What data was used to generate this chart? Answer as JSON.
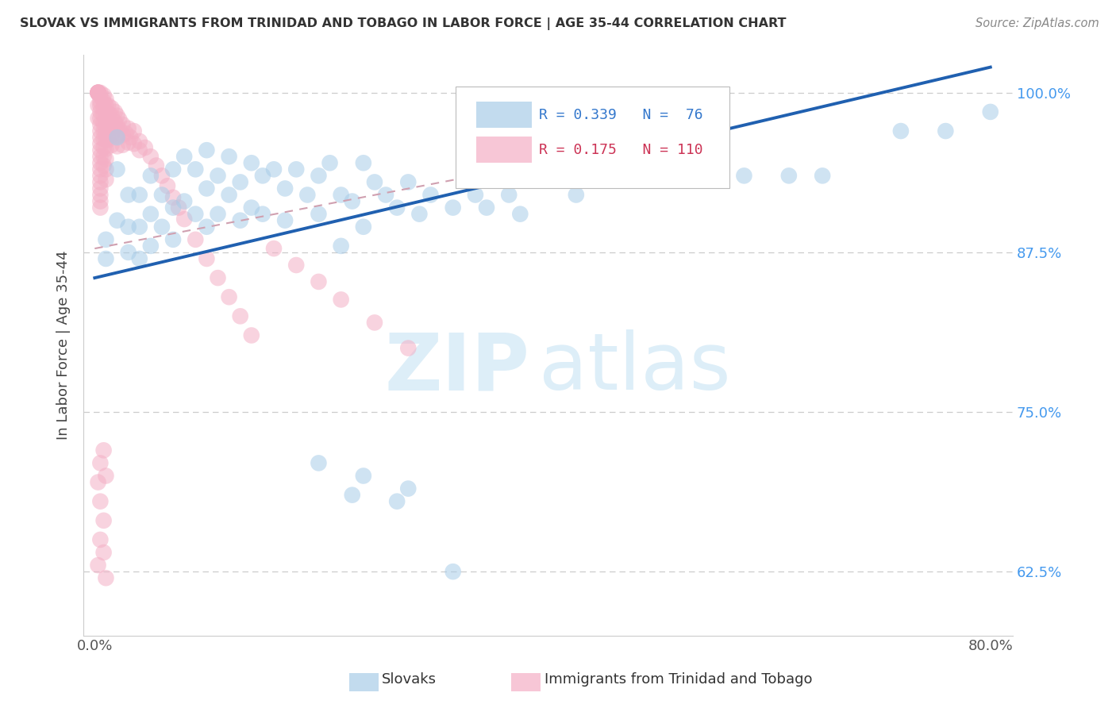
{
  "title": "SLOVAK VS IMMIGRANTS FROM TRINIDAD AND TOBAGO IN LABOR FORCE | AGE 35-44 CORRELATION CHART",
  "source": "Source: ZipAtlas.com",
  "ylabel": "In Labor Force | Age 35-44",
  "xlim": [
    -0.01,
    0.82
  ],
  "ylim": [
    0.575,
    1.03
  ],
  "yticks": [
    0.625,
    0.75,
    0.875,
    1.0
  ],
  "ytick_labels": [
    "62.5%",
    "75.0%",
    "87.5%",
    "100.0%"
  ],
  "xticks": [
    0.0,
    0.2,
    0.4,
    0.6,
    0.8
  ],
  "xtick_labels": [
    "0.0%",
    "",
    "",
    "",
    "80.0%"
  ],
  "blue_R": 0.339,
  "blue_N": 76,
  "pink_R": 0.175,
  "pink_N": 110,
  "blue_color": "#a8cce8",
  "pink_color": "#f4afc5",
  "blue_line_color": "#2060b0",
  "pink_line_color": "#d0a0b0",
  "watermark_color": "#ddeef8",
  "legend_blue_label": "Slovaks",
  "legend_pink_label": "Immigrants from Trinidad and Tobago",
  "blue_line_x0": 0.0,
  "blue_line_y0": 0.855,
  "blue_line_x1": 0.8,
  "blue_line_y1": 1.02,
  "pink_line_x0": 0.0,
  "pink_line_y0": 0.878,
  "pink_line_x1": 0.34,
  "pink_line_y1": 0.935
}
